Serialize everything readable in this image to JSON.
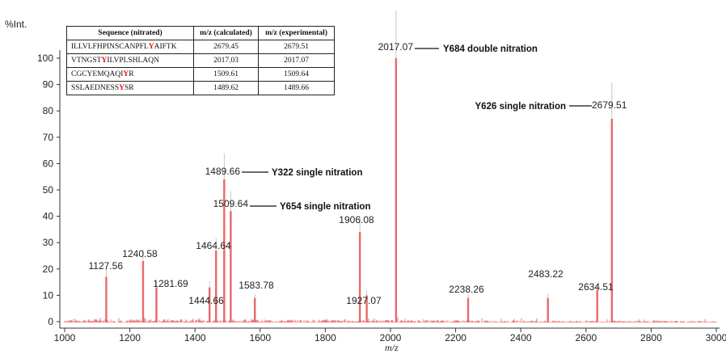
{
  "chart_data": {
    "type": "line",
    "ylabel": "%Int.",
    "xlabel": "m/z",
    "xlim": [
      1000,
      3000
    ],
    "ylim": [
      0,
      100
    ],
    "xticks": [
      "1000",
      "1200",
      "1400",
      "1600",
      "1800",
      "2000",
      "2200",
      "2400",
      "2600",
      "2800",
      "3000"
    ],
    "yticks": [
      "0",
      "10",
      "20",
      "30",
      "40",
      "50",
      "60",
      "70",
      "80",
      "90",
      "100"
    ],
    "line_color": "#e8686b",
    "peaks": [
      {
        "mz": 1127.56,
        "intensity": 17,
        "label": "1127.56"
      },
      {
        "mz": 1240.58,
        "intensity": 23,
        "label": "1240.58"
      },
      {
        "mz": 1281.69,
        "intensity": 13,
        "label": "1281.69"
      },
      {
        "mz": 1444.66,
        "intensity": 13,
        "label": "1444.66"
      },
      {
        "mz": 1464.64,
        "intensity": 27,
        "label": "1464.64"
      },
      {
        "mz": 1489.66,
        "intensity": 54,
        "label": "1489.66"
      },
      {
        "mz": 1509.64,
        "intensity": 42,
        "label": "1509.64"
      },
      {
        "mz": 1583.78,
        "intensity": 9,
        "label": "1583.78"
      },
      {
        "mz": 1906.08,
        "intensity": 34,
        "label": "1906.08"
      },
      {
        "mz": 1927.07,
        "intensity": 10,
        "label": "1927.07"
      },
      {
        "mz": 2017.07,
        "intensity": 100,
        "label": "2017.07"
      },
      {
        "mz": 2238.26,
        "intensity": 9,
        "label": "2238.26"
      },
      {
        "mz": 2483.22,
        "intensity": 9,
        "label": "2483.22"
      },
      {
        "mz": 2634.51,
        "intensity": 12,
        "label": "2634.51"
      },
      {
        "mz": 2679.51,
        "intensity": 77,
        "label": "2679.51"
      }
    ],
    "annotations": [
      {
        "peak": "2017.07",
        "text": "Y684 double nitration"
      },
      {
        "peak": "2679.51",
        "text": "Y626 single nitration"
      },
      {
        "peak": "1489.66",
        "text": "Y322 single nitration"
      },
      {
        "peak": "1509.64",
        "text": "Y654 single nitration"
      }
    ]
  },
  "table": {
    "headers": [
      "Sequence (nitrated)",
      "m/z (calculated)",
      "m/z (experimental)"
    ],
    "rows": [
      {
        "pre": "ILLVLFHPINSCANPFL",
        "hl": "Y",
        "post": "AIFTK",
        "calc": "2679.45",
        "exp": "2679.51"
      },
      {
        "pre": "VTNGST",
        "hl": "Y",
        "post": "ILVPLSHLAQN",
        "calc": "2017.03",
        "exp": "2017.07"
      },
      {
        "pre": "CGCYEMQAQI",
        "hl": "Y",
        "post": "R",
        "calc": "1509.61",
        "exp": "1509.64"
      },
      {
        "pre": "SSLAEDNESS",
        "hl": "Y",
        "post": "SR",
        "calc": "1489.62",
        "exp": "1489.66"
      }
    ]
  }
}
